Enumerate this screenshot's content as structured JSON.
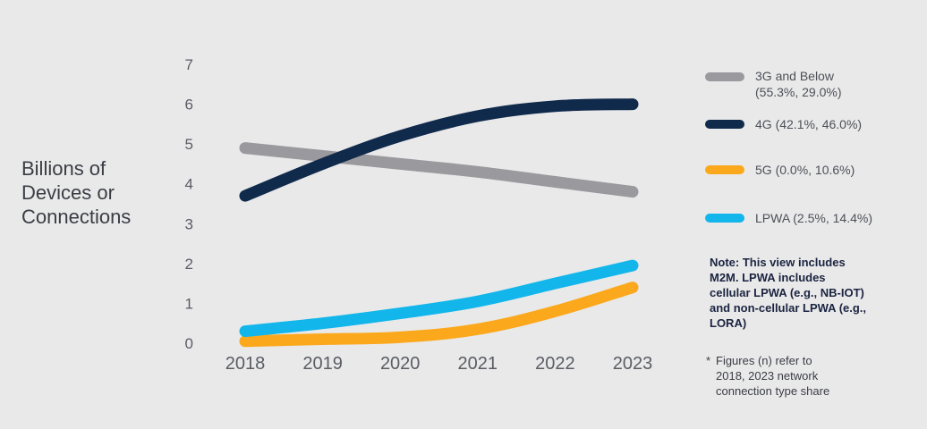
{
  "chart_data": {
    "type": "line",
    "title": "",
    "ylabel_lines": [
      "Billions of",
      "Devices or",
      "Connections"
    ],
    "xlabel": "",
    "x": [
      "2018",
      "2019",
      "2020",
      "2021",
      "2022",
      "2023"
    ],
    "ylim": [
      0,
      7
    ],
    "yticks": [
      "0",
      "1",
      "2",
      "3",
      "4",
      "5",
      "6",
      "7"
    ],
    "grid": false,
    "legend_position": "right",
    "series": [
      {
        "name": "3G and Below (55.3%, 29.0%)",
        "name_lines": [
          "3G and Below",
          "(55.3%, 29.0%)"
        ],
        "color": "#9a9a9e",
        "values": [
          4.9,
          4.7,
          4.5,
          4.3,
          4.05,
          3.8
        ]
      },
      {
        "name": "4G (42.1%, 46.0%)",
        "name_lines": [
          "4G (42.1%, 46.0%)"
        ],
        "color": "#102a4c",
        "values": [
          3.7,
          4.5,
          5.2,
          5.7,
          5.95,
          6.0
        ]
      },
      {
        "name": "5G (0.0%, 10.6%)",
        "name_lines": [
          "5G (0.0%, 10.6%)"
        ],
        "color": "#fba81c",
        "values": [
          0.05,
          0.1,
          0.15,
          0.35,
          0.8,
          1.4
        ]
      },
      {
        "name": "LPWA (2.5%, 14.4%)",
        "name_lines": [
          "LPWA (2.5%, 14.4%)"
        ],
        "color": "#12b6ea",
        "values": [
          0.3,
          0.5,
          0.75,
          1.05,
          1.5,
          1.95
        ]
      }
    ],
    "note_lines": [
      "Note: This view includes",
      "M2M.  LPWA includes",
      "cellular LPWA (e.g., NB-IOT)",
      "and non-cellular LPWA (e.g.,",
      "LORA)"
    ],
    "footnote_marker": "*",
    "footnote_lines": [
      "Figures (n) refer to",
      "2018, 2023 network",
      "connection type share"
    ]
  }
}
